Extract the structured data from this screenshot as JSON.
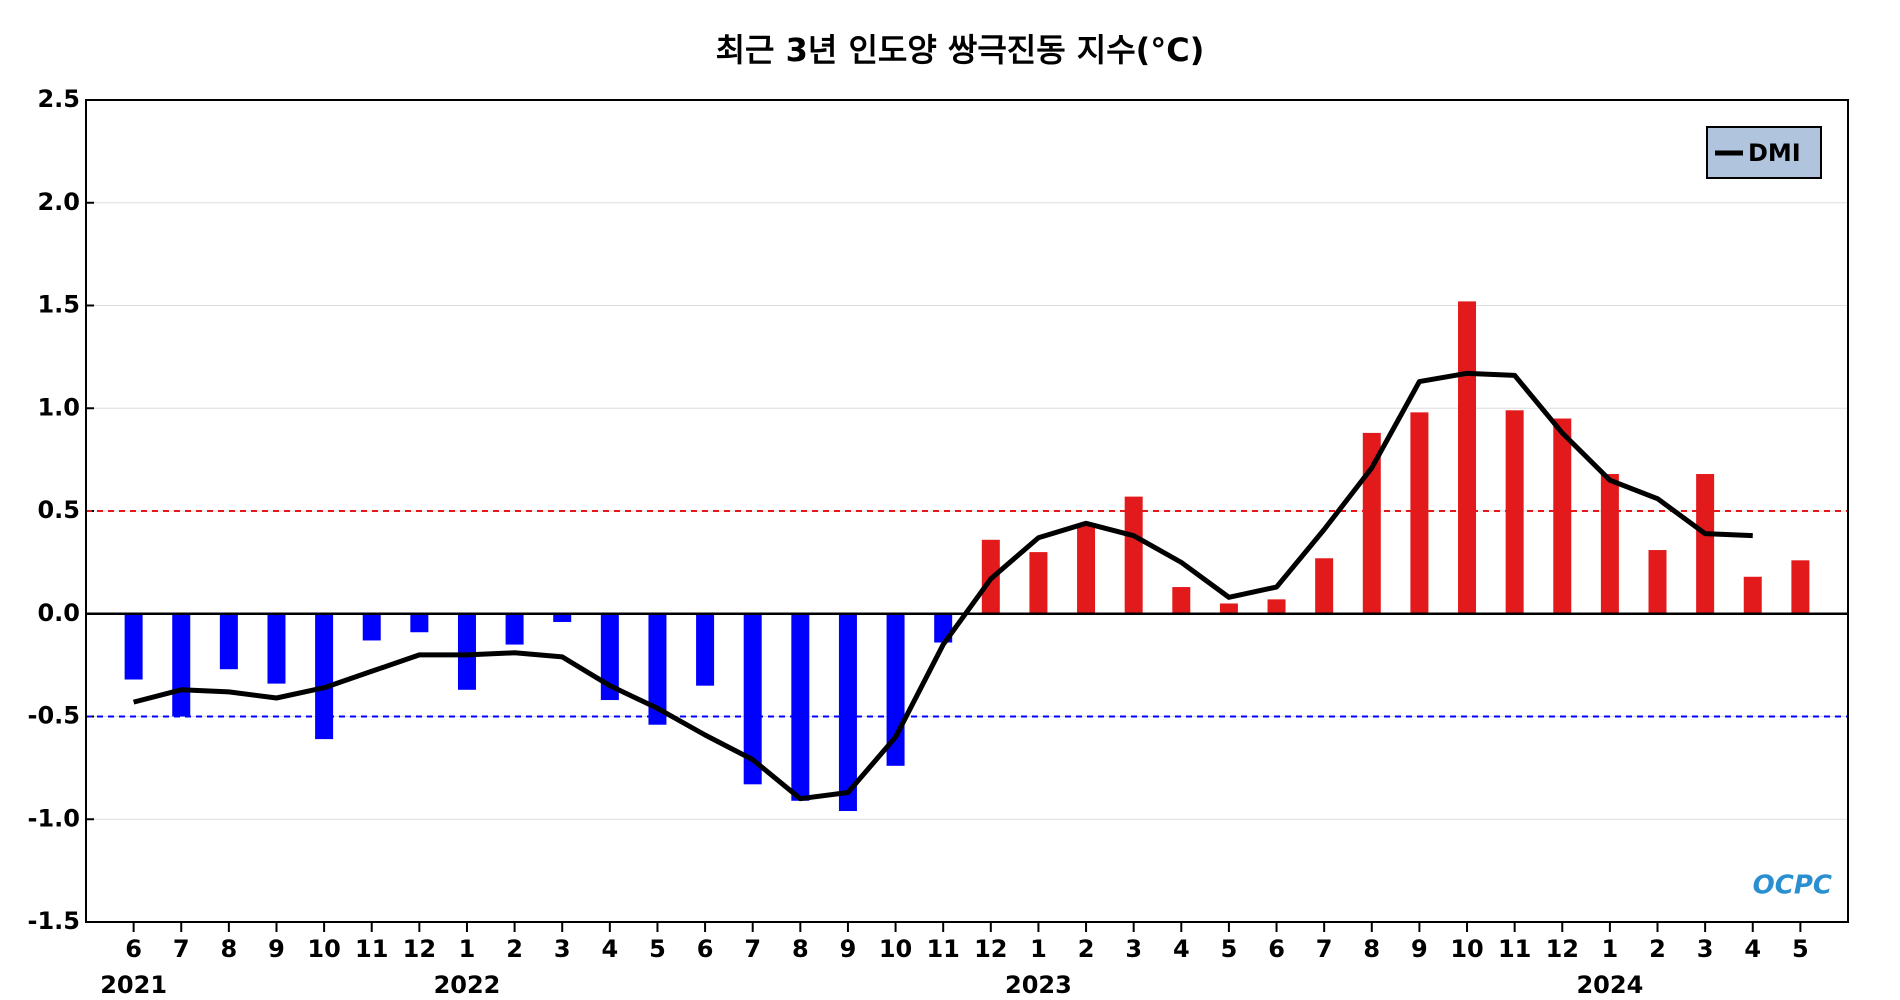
{
  "chart_data": {
    "type": "bar",
    "title": "최근 3년 인도양 쌍극진동 지수(°C)",
    "categories": [
      "6",
      "7",
      "8",
      "9",
      "10",
      "11",
      "12",
      "1",
      "2",
      "3",
      "4",
      "5",
      "6",
      "7",
      "8",
      "9",
      "10",
      "11",
      "12",
      "1",
      "2",
      "3",
      "4",
      "5",
      "6",
      "7",
      "8",
      "9",
      "10",
      "11",
      "12",
      "1",
      "2",
      "3",
      "4",
      "5"
    ],
    "years": [
      "2021",
      null,
      null,
      null,
      null,
      null,
      null,
      "2022",
      null,
      null,
      null,
      null,
      null,
      null,
      null,
      null,
      null,
      null,
      null,
      "2023",
      null,
      null,
      null,
      null,
      null,
      null,
      null,
      null,
      null,
      null,
      null,
      "2024",
      null,
      null,
      null,
      null
    ],
    "values": [
      -0.32,
      -0.5,
      -0.27,
      -0.34,
      -0.61,
      -0.13,
      -0.09,
      -0.37,
      -0.15,
      -0.04,
      -0.42,
      -0.54,
      -0.35,
      -0.83,
      -0.91,
      -0.96,
      -0.74,
      -0.14,
      0.36,
      0.3,
      0.43,
      0.57,
      0.13,
      0.05,
      0.07,
      0.27,
      0.88,
      0.98,
      1.52,
      0.99,
      0.95,
      0.68,
      0.31,
      0.68,
      0.18,
      0.26
    ],
    "positive_color": "#e31a1c",
    "negative_color": "#0000ff",
    "series": [
      {
        "name": "DMI",
        "color": "#000000",
        "values": [
          -0.43,
          -0.37,
          -0.38,
          -0.41,
          -0.36,
          -0.28,
          -0.2,
          -0.2,
          -0.19,
          -0.21,
          -0.35,
          -0.46,
          -0.59,
          -0.71,
          -0.9,
          -0.87,
          -0.6,
          -0.15,
          0.17,
          0.37,
          0.44,
          0.38,
          0.25,
          0.08,
          0.13,
          0.41,
          0.71,
          1.13,
          1.17,
          1.16,
          0.88,
          0.65,
          0.56,
          0.39,
          0.38,
          null
        ]
      }
    ],
    "reference_lines": [
      {
        "value": 0.5,
        "color": "#e31a1c"
      },
      {
        "value": -0.5,
        "color": "#0000ff"
      }
    ],
    "ylim": [
      -1.5,
      2.5
    ],
    "yticks": [
      -1.5,
      {
        "value": -1,
        "label": "-1.0"
      },
      -0.5,
      {
        "value": 0,
        "label": "0.0"
      },
      0.5,
      {
        "value": 1,
        "label": "1.0"
      },
      1.5,
      {
        "value": 2,
        "label": "2.0"
      },
      2.5
    ],
    "grid": true,
    "legend": "upper right",
    "logo": "OCPC"
  }
}
